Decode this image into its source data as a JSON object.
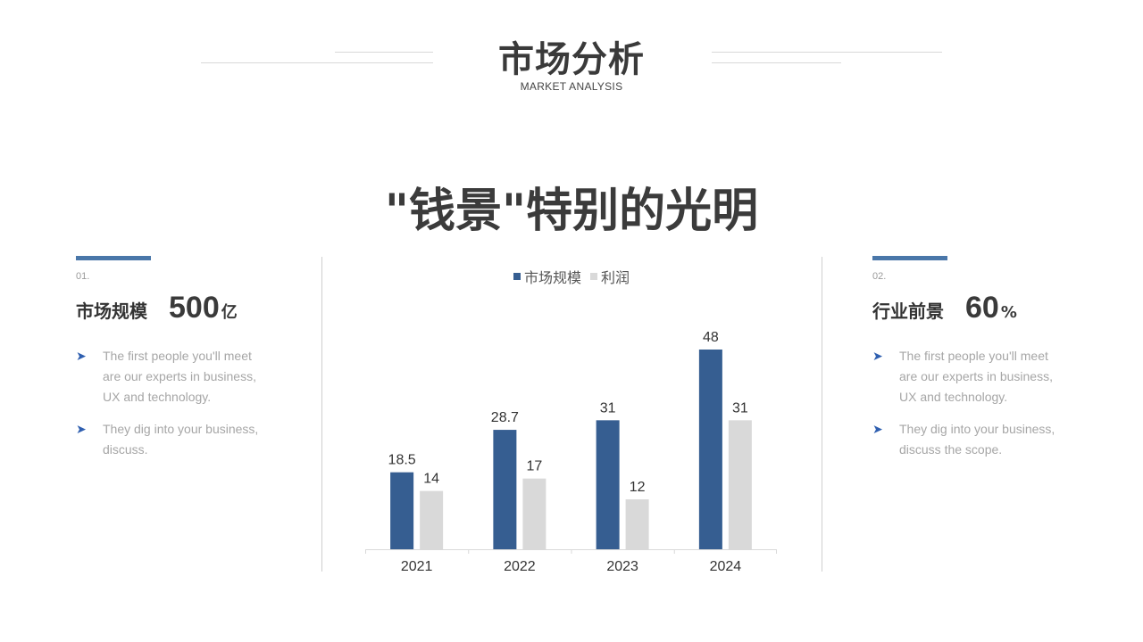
{
  "header": {
    "title": "市场分析",
    "subtitle": "MARKET ANALYSIS"
  },
  "headline": "\"钱景\"特别的光明",
  "left_panel": {
    "index": "01.",
    "metric_label": "市场规模",
    "metric_value": "500",
    "metric_unit": "亿",
    "bullets": [
      "The first people you'll meet are our experts in business, UX and technology.",
      "They dig into your business, discuss."
    ]
  },
  "right_panel": {
    "index": "02.",
    "metric_label": "行业前景",
    "metric_value": "60",
    "metric_unit": "%",
    "bullets": [
      "The first people you'll meet are our experts in business, UX and technology.",
      "They dig into your business, discuss the scope."
    ]
  },
  "colors": {
    "accent": "#4a77a9",
    "series_market": "#365e91",
    "series_profit": "#d9d9d9",
    "bullet_icon": "#2f5fb0"
  },
  "icons": {
    "bullet": "arrow-bullet-icon"
  },
  "chart_data": {
    "type": "bar",
    "title": "",
    "xlabel": "",
    "ylabel": "",
    "categories": [
      "2021",
      "2022",
      "2023",
      "2024"
    ],
    "series": [
      {
        "name": "市场规模",
        "values": [
          18.5,
          28.7,
          31,
          48
        ],
        "labels": [
          "18.5",
          "28.7",
          "31",
          "48"
        ]
      },
      {
        "name": "利润",
        "values": [
          14,
          17,
          12,
          31
        ],
        "labels": [
          "14",
          "17",
          "12",
          "31"
        ]
      }
    ],
    "ylim": [
      0,
      48
    ],
    "grid": false,
    "legend_position": "top"
  }
}
